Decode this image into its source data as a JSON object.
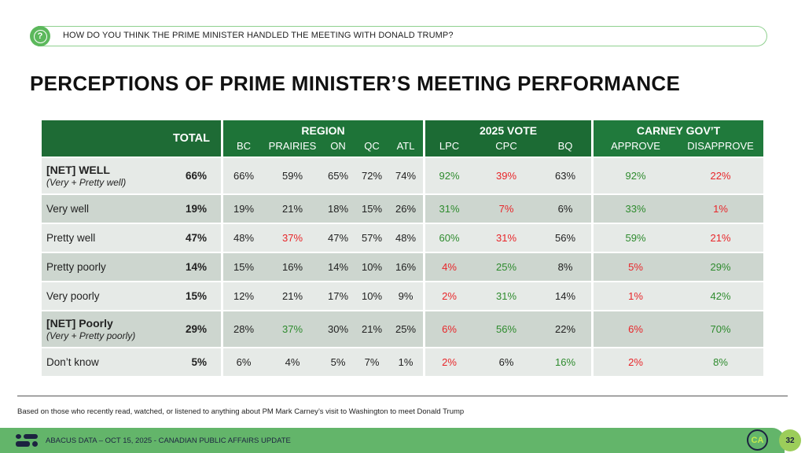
{
  "question": {
    "icon": "question-icon",
    "text": "HOW DO YOU THINK THE PRIME MINISTER HANDLED THE MEETING WITH DONALD TRUMP?"
  },
  "title": "PERCEPTIONS OF PRIME MINISTER’S MEETING PERFORMANCE",
  "table": {
    "total_header": "TOTAL",
    "groups": [
      {
        "label": "REGION",
        "columns": [
          "BC",
          "PRAIRIES",
          "ON",
          "QC",
          "ATL"
        ]
      },
      {
        "label": "2025 VOTE",
        "columns": [
          "LPC",
          "CPC",
          "BQ"
        ]
      },
      {
        "label": "CARNEY GOV’T",
        "columns": [
          "APPROVE",
          "DISAPPROVE"
        ]
      }
    ],
    "colors": {
      "positive": "#2e8b2e",
      "negative": "#e8262a",
      "neutral": "#222222",
      "header": "#1e6b35"
    },
    "rows": [
      {
        "label": "[NET] WELL",
        "sublabel": "(Very + Pretty well)",
        "total": "66%",
        "values": [
          "66%",
          "59%",
          "65%",
          "72%",
          "74%",
          "92%",
          "39%",
          "63%",
          "92%",
          "22%"
        ],
        "tones": [
          "neu",
          "neu",
          "neu",
          "neu",
          "neu",
          "pos",
          "neg",
          "neu",
          "pos",
          "neg"
        ]
      },
      {
        "label": "Very well",
        "sublabel": "",
        "total": "19%",
        "values": [
          "19%",
          "21%",
          "18%",
          "15%",
          "26%",
          "31%",
          "7%",
          "6%",
          "33%",
          "1%"
        ],
        "tones": [
          "neu",
          "neu",
          "neu",
          "neu",
          "neu",
          "pos",
          "neg",
          "neu",
          "pos",
          "neg"
        ]
      },
      {
        "label": "Pretty well",
        "sublabel": "",
        "total": "47%",
        "values": [
          "48%",
          "37%",
          "47%",
          "57%",
          "48%",
          "60%",
          "31%",
          "56%",
          "59%",
          "21%"
        ],
        "tones": [
          "neu",
          "neg",
          "neu",
          "neu",
          "neu",
          "pos",
          "neg",
          "neu",
          "pos",
          "neg"
        ]
      },
      {
        "label": "Pretty poorly",
        "sublabel": "",
        "total": "14%",
        "values": [
          "15%",
          "16%",
          "14%",
          "10%",
          "16%",
          "4%",
          "25%",
          "8%",
          "5%",
          "29%"
        ],
        "tones": [
          "neu",
          "neu",
          "neu",
          "neu",
          "neu",
          "neg",
          "pos",
          "neu",
          "neg",
          "pos"
        ]
      },
      {
        "label": "Very poorly",
        "sublabel": "",
        "total": "15%",
        "values": [
          "12%",
          "21%",
          "17%",
          "10%",
          "9%",
          "2%",
          "31%",
          "14%",
          "1%",
          "42%"
        ],
        "tones": [
          "neu",
          "neu",
          "neu",
          "neu",
          "neu",
          "neg",
          "pos",
          "neu",
          "neg",
          "pos"
        ]
      },
      {
        "label": "[NET] Poorly",
        "sublabel": "(Very + Pretty poorly)",
        "total": "29%",
        "values": [
          "28%",
          "37%",
          "30%",
          "21%",
          "25%",
          "6%",
          "56%",
          "22%",
          "6%",
          "70%"
        ],
        "tones": [
          "neu",
          "pos",
          "neu",
          "neu",
          "neu",
          "neg",
          "pos",
          "neu",
          "neg",
          "pos"
        ]
      },
      {
        "label": "Don’t know",
        "sublabel": "",
        "total": "5%",
        "values": [
          "6%",
          "4%",
          "5%",
          "7%",
          "1%",
          "2%",
          "6%",
          "16%",
          "2%",
          "8%"
        ],
        "tones": [
          "neu",
          "neu",
          "neu",
          "neu",
          "neu",
          "neg",
          "neu",
          "pos",
          "neg",
          "pos"
        ]
      }
    ]
  },
  "note": "Based on those who recently read, watched, or listened to anything about PM Mark Carney’s visit to Washington to meet Donald Trump",
  "footer": {
    "text": "ABACUS DATA – OCT 15, 2025 - CANADIAN PUBLIC AFFAIRS UPDATE",
    "badge": "CA",
    "page": "32"
  }
}
